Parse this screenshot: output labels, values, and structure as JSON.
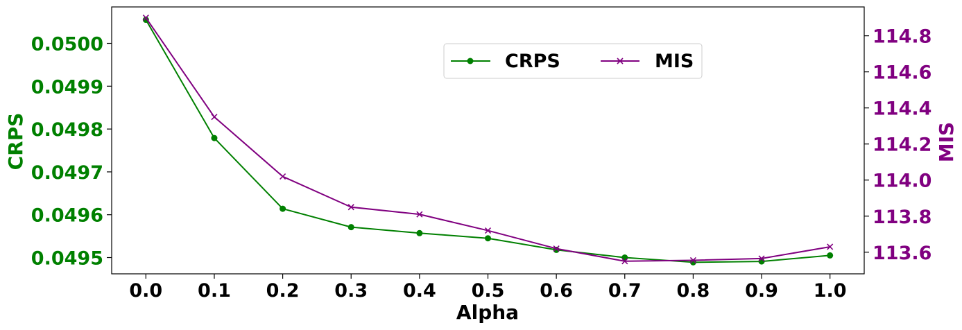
{
  "chart_data": {
    "type": "line",
    "xlabel": "Alpha",
    "ylabel_left": "CRPS",
    "ylabel_right": "MIS",
    "x": [
      0.0,
      0.1,
      0.2,
      0.3,
      0.4,
      0.5,
      0.6,
      0.7,
      0.8,
      0.9,
      1.0
    ],
    "x_tick_labels": [
      "0.0",
      "0.1",
      "0.2",
      "0.3",
      "0.4",
      "0.5",
      "0.6",
      "0.7",
      "0.8",
      "0.9",
      "1.0"
    ],
    "xlim": [
      -0.05,
      1.05
    ],
    "series": [
      {
        "name": "CRPS",
        "axis": "left",
        "color": "#008000",
        "marker": "circle",
        "values": [
          0.050055,
          0.049779,
          0.049614,
          0.049571,
          0.049557,
          0.049545,
          0.049518,
          0.0495,
          0.049489,
          0.049491,
          0.049505
        ]
      },
      {
        "name": "MIS",
        "axis": "right",
        "color": "#800080",
        "marker": "x",
        "values": [
          114.9,
          114.35,
          114.02,
          113.85,
          113.81,
          113.72,
          113.62,
          113.55,
          113.555,
          113.565,
          113.63
        ]
      }
    ],
    "left_axis": {
      "ylim": [
        0.049462,
        0.050085
      ],
      "ticks": [
        0.0495,
        0.0496,
        0.0497,
        0.0498,
        0.0499,
        0.05
      ],
      "tick_labels": [
        "0.0495",
        "0.0496",
        "0.0497",
        "0.0498",
        "0.0499",
        "0.0500"
      ],
      "color": "#008000"
    },
    "right_axis": {
      "ylim": [
        113.48,
        114.96
      ],
      "ticks": [
        113.6,
        113.8,
        114.0,
        114.2,
        114.4,
        114.6,
        114.8
      ],
      "tick_labels": [
        "113.6",
        "113.8",
        "114.0",
        "114.2",
        "114.4",
        "114.6",
        "114.8"
      ],
      "color": "#800080"
    },
    "legend": {
      "position": "top-right",
      "entries": [
        "CRPS",
        "MIS"
      ]
    },
    "grid": false
  }
}
